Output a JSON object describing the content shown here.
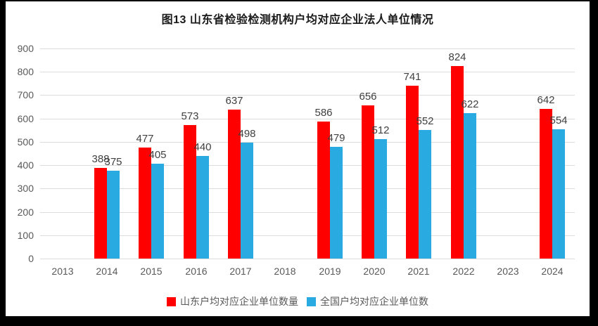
{
  "chart_data": {
    "type": "bar",
    "title": "图13 山东省检验检测机构户均对应企业法人单位情况",
    "categories": [
      "2013",
      "2014",
      "2015",
      "2016",
      "2017",
      "2018",
      "2019",
      "2020",
      "2021",
      "2022",
      "2023",
      "2024"
    ],
    "series": [
      {
        "name": "山东户均对应企业单位数量",
        "color": "#FF0000",
        "values": [
          null,
          388,
          477,
          573,
          637,
          null,
          586,
          656,
          741,
          824,
          null,
          642
        ]
      },
      {
        "name": "全国户均对应企业单位数",
        "color": "#29ABE2",
        "values": [
          null,
          375,
          405,
          440,
          498,
          null,
          479,
          512,
          552,
          622,
          null,
          554
        ]
      }
    ],
    "ylim": [
      0,
      900
    ],
    "ytick_step": 100,
    "grid": true,
    "legend_position": "bottom",
    "value_labels": true,
    "label_color": "#404040",
    "axis_color": "#595959",
    "gridline_color": "#DCDCDC",
    "frame_color": "#000000"
  }
}
